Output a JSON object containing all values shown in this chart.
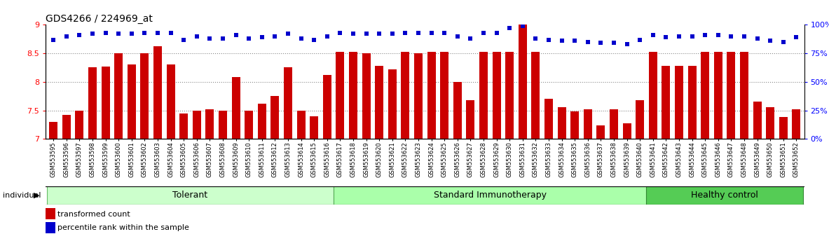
{
  "title": "GDS4266 / 224969_at",
  "samples": [
    "GSM553595",
    "GSM553596",
    "GSM553597",
    "GSM553598",
    "GSM553599",
    "GSM553600",
    "GSM553601",
    "GSM553602",
    "GSM553603",
    "GSM553604",
    "GSM553605",
    "GSM553606",
    "GSM553607",
    "GSM553608",
    "GSM553609",
    "GSM553610",
    "GSM553611",
    "GSM553612",
    "GSM553613",
    "GSM553614",
    "GSM553615",
    "GSM553616",
    "GSM553617",
    "GSM553618",
    "GSM553619",
    "GSM553620",
    "GSM553621",
    "GSM553622",
    "GSM553623",
    "GSM553624",
    "GSM553625",
    "GSM553626",
    "GSM553627",
    "GSM553628",
    "GSM553629",
    "GSM553630",
    "GSM553631",
    "GSM553632",
    "GSM553633",
    "GSM553634",
    "GSM553635",
    "GSM553636",
    "GSM553637",
    "GSM553638",
    "GSM553639",
    "GSM553640",
    "GSM553641",
    "GSM553642",
    "GSM553643",
    "GSM553644",
    "GSM553645",
    "GSM553646",
    "GSM553647",
    "GSM553648",
    "GSM553649",
    "GSM553650",
    "GSM553651",
    "GSM553652"
  ],
  "bar_values": [
    7.3,
    7.42,
    7.5,
    8.25,
    8.27,
    8.5,
    8.3,
    8.5,
    8.62,
    8.3,
    7.45,
    7.5,
    7.52,
    7.5,
    8.08,
    7.5,
    7.62,
    7.75,
    8.25,
    7.5,
    7.4,
    8.12,
    8.52,
    8.52,
    8.5,
    8.28,
    8.22,
    8.52,
    8.5,
    8.52,
    8.52,
    8.0,
    7.68,
    8.52,
    8.52,
    8.52,
    9.0,
    8.52,
    7.7,
    7.55,
    7.48,
    7.52,
    7.24,
    7.52,
    7.27,
    7.68,
    8.52,
    8.28,
    8.28,
    8.28,
    8.52,
    8.52,
    8.52,
    8.52,
    7.65,
    7.55,
    7.38,
    7.52
  ],
  "percentile_values": [
    87,
    90,
    91,
    92,
    93,
    92,
    92,
    93,
    93,
    93,
    87,
    90,
    88,
    88,
    91,
    88,
    89,
    90,
    92,
    88,
    87,
    90,
    93,
    92,
    92,
    92,
    92,
    93,
    93,
    93,
    93,
    90,
    88,
    93,
    93,
    97,
    99,
    88,
    87,
    86,
    86,
    85,
    84,
    84,
    83,
    87,
    91,
    89,
    90,
    90,
    91,
    91,
    90,
    90,
    88,
    86,
    85,
    89
  ],
  "groups": [
    {
      "label": "Tolerant",
      "start": 0,
      "end": 22,
      "color": "#ccffcc",
      "edge": "#66bb66"
    },
    {
      "label": "Standard Immunotherapy",
      "start": 22,
      "end": 46,
      "color": "#aaffaa",
      "edge": "#55aa55"
    },
    {
      "label": "Healthy control",
      "start": 46,
      "end": 58,
      "color": "#55cc55",
      "edge": "#338833"
    }
  ],
  "bar_color": "#cc0000",
  "dot_color": "#0000cc",
  "ylim_left": [
    7.0,
    9.0
  ],
  "ylim_right": [
    0,
    100
  ],
  "yticks_left": [
    7.0,
    7.5,
    8.0,
    8.5,
    9.0
  ],
  "ytick_labels_left": [
    "7",
    "7.5",
    "8",
    "8.5",
    "9"
  ],
  "yticks_right": [
    0,
    25,
    50,
    75,
    100
  ],
  "ytick_labels_right": [
    "0%",
    "25%",
    "50%",
    "75%",
    "100%"
  ],
  "bg_color": "#ffffff",
  "grid_color": "#888888",
  "title_fontsize": 10,
  "tick_fontsize": 6,
  "legend_fontsize": 8,
  "group_label_fontsize": 9,
  "ytick_fontsize": 8
}
